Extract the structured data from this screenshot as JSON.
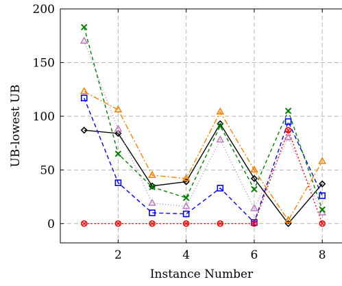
{
  "chart_data": {
    "type": "line",
    "title": "",
    "xlabel": "Instance Number",
    "ylabel": "UB-lowest UB",
    "x": [
      1,
      2,
      3,
      4,
      5,
      6,
      7,
      8
    ],
    "xlim": [
      0.3,
      8.6
    ],
    "ylim": [
      -18,
      200
    ],
    "xticks": [
      2,
      4,
      6,
      8
    ],
    "yticks": [
      0,
      50,
      100,
      150,
      200
    ],
    "grid": true,
    "legend": "none",
    "series": [
      {
        "color": "#000000",
        "dash": "",
        "marker": "diamond",
        "values": [
          87,
          84,
          35,
          39,
          93,
          42,
          0,
          37
        ]
      },
      {
        "color": "#0000ff",
        "dash": "6 4",
        "marker": "square",
        "values": [
          117,
          38,
          10,
          9,
          33,
          1,
          95,
          26
        ]
      },
      {
        "color": "#ff0000",
        "dash": "2 3",
        "marker": "circle",
        "values": [
          0,
          0,
          0,
          0,
          0,
          0,
          87,
          0
        ]
      },
      {
        "color": "#bf7fbf",
        "dash": "1 3",
        "marker": "triangle",
        "values": [
          170,
          88,
          19,
          16,
          78,
          14,
          80,
          10
        ]
      },
      {
        "color": "#008000",
        "dash": "5 4",
        "marker": "x",
        "values": [
          183,
          65,
          34,
          24,
          91,
          32,
          105,
          13
        ]
      },
      {
        "color": "#ff8000",
        "dash": "8 3 2 3",
        "marker": "triangle",
        "values": [
          123,
          106,
          45,
          42,
          104,
          50,
          3,
          58
        ]
      }
    ]
  }
}
